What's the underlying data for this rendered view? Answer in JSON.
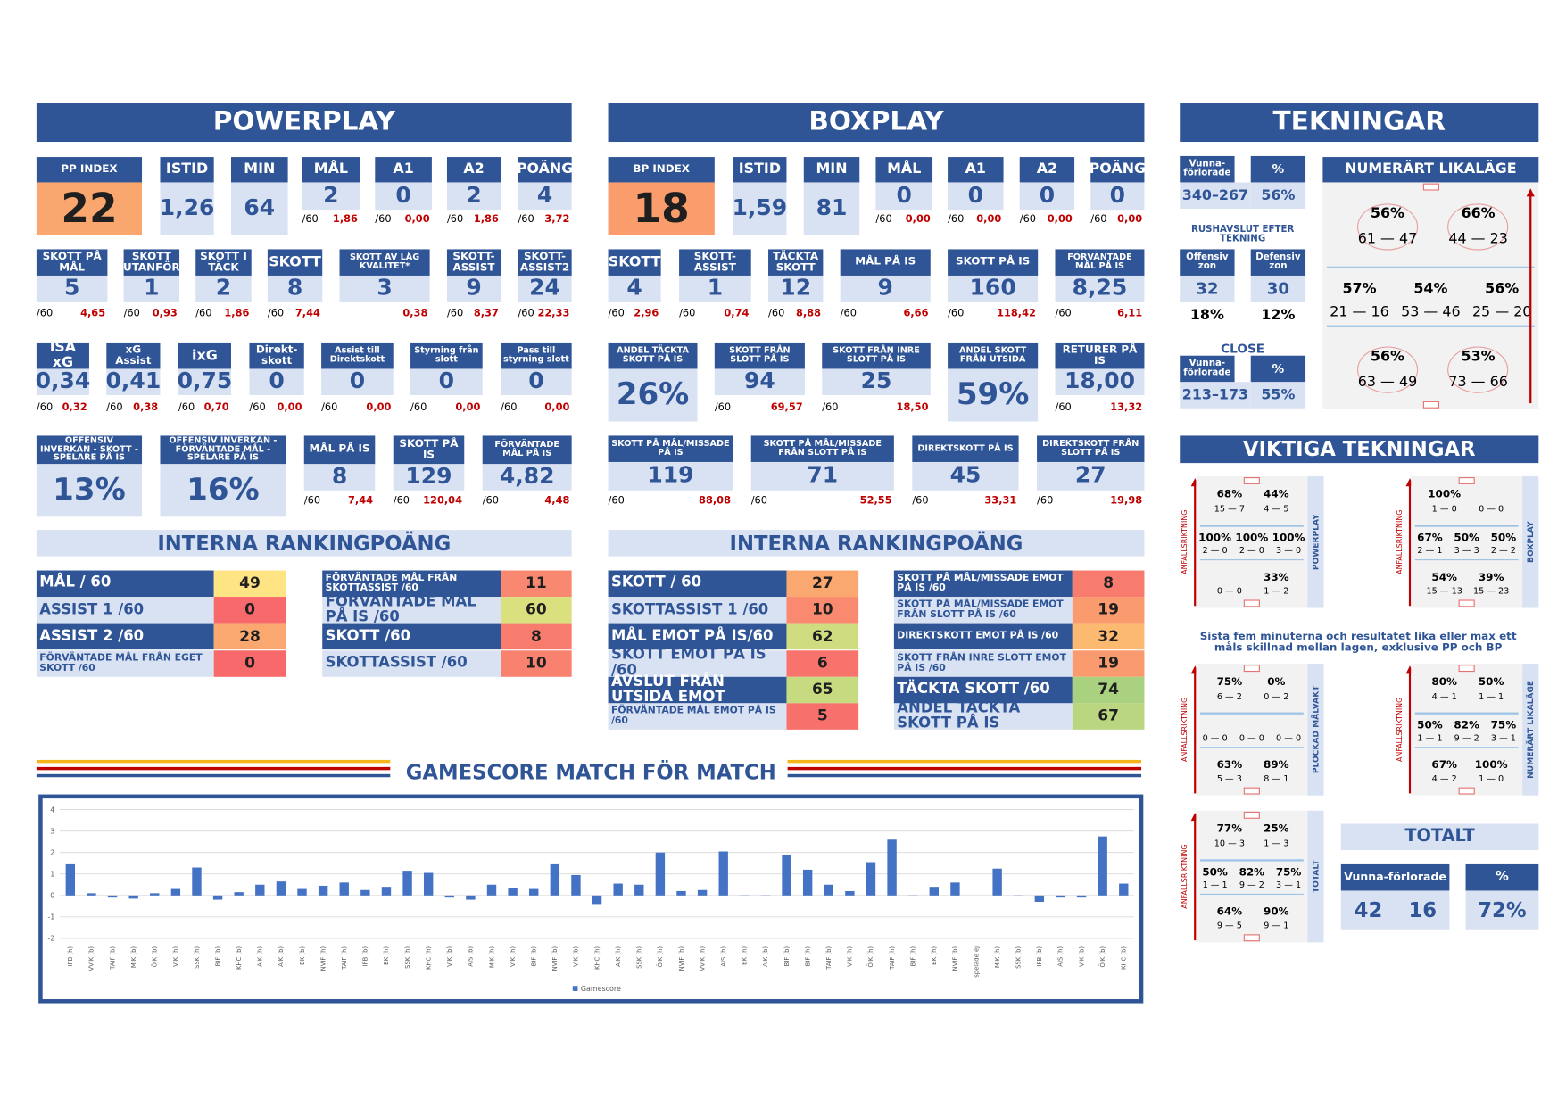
{
  "per_label": "/60",
  "powerplay": {
    "title": "POWERPLAY",
    "rows": [
      [
        {
          "label": "PP INDEX",
          "value": "22",
          "color": "#f9a66f"
        },
        {
          "label": "ISTID",
          "value": "1,26"
        },
        {
          "label": "MIN",
          "value": "64"
        },
        {
          "label": "MÅL",
          "value": "2",
          "per_label": "/60",
          "per": "1,86"
        },
        {
          "label": "A1",
          "value": "0",
          "per_label": "/60",
          "per": "0,00"
        },
        {
          "label": "A2",
          "value": "2",
          "per_label": "/60",
          "per": "1,86"
        },
        {
          "label": "POÄNG",
          "value": "4",
          "per_label": "/60",
          "per": "3,72"
        }
      ],
      [
        {
          "label": "SKOTT PÅ MÅL",
          "value": "5",
          "per_label": "/60",
          "per": "4,65"
        },
        {
          "label": "SKOTT UTANFÖR",
          "value": "1",
          "per_label": "/60",
          "per": "0,93"
        },
        {
          "label": "SKOTT I TÄCK",
          "value": "2",
          "per_label": "/60",
          "per": "1,86"
        },
        {
          "label": "SKOTT",
          "value": "8",
          "per_label": "/60",
          "per": "7,44"
        },
        {
          "label": "SKOTT AV LÅG KVALITET*",
          "value": "3",
          "per": "0,38"
        },
        {
          "label": "SKOTT-ASSIST",
          "value": "9",
          "per_label": "/60",
          "per": "8,37"
        },
        {
          "label": "SKOTT-ASSIST2",
          "value": "24",
          "per_label": "/60",
          "per": "22,33"
        }
      ],
      [
        {
          "label": "iSA xG",
          "value": "0,34",
          "per_label": "/60",
          "per": "0,32"
        },
        {
          "label": "xG Assist",
          "value": "0,41",
          "per_label": "/60",
          "per": "0,38"
        },
        {
          "label": "ixG",
          "value": "0,75",
          "per_label": "/60",
          "per": "0,70"
        },
        {
          "label": "Direkt-skott",
          "value": "0",
          "per_label": "/60",
          "per": "0,00"
        },
        {
          "label": "Assist till Direktskott",
          "value": "0",
          "per_label": "/60",
          "per": "0,00"
        },
        {
          "label": "Styrning från slott",
          "value": "0",
          "per_label": "/60",
          "per": "0,00"
        },
        {
          "label": "Pass till styrning slott",
          "value": "0",
          "per_label": "/60",
          "per": "0,00"
        }
      ],
      [
        {
          "label": "OFFENSIV INVERKAN - SKOTT - SPELARE PÅ IS",
          "value": "13%"
        },
        {
          "label": "OFFENSIV INVERKAN - FÖRVÄNTADE MÅL - SPELARE PÅ IS",
          "value": "16%"
        },
        {
          "label": "MÅL PÅ IS",
          "value": "8",
          "per_label": "/60",
          "per": "7,44"
        },
        {
          "label": "SKOTT PÅ IS",
          "value": "129",
          "per_label": "/60",
          "per": "120,04"
        },
        {
          "label": "FÖRVÄNTADE MÅL PÅ IS",
          "value": "4,82",
          "per_label": "/60",
          "per": "4,48"
        }
      ]
    ],
    "ranking": {
      "title": "INTERNA RANKINGPOÄNG",
      "left": [
        {
          "label": "MÅL / 60",
          "value": 49,
          "color": "#ffe483"
        },
        {
          "label": "ASSIST 1 /60",
          "value": 0,
          "color": "#f8696b"
        },
        {
          "label": "ASSIST 2 /60",
          "value": 28,
          "color": "#fba870"
        },
        {
          "label": "FÖRVÄNTADE MÅL FRÅN EGET SKOTT /60",
          "value": 0,
          "color": "#f8696b"
        }
      ],
      "right": [
        {
          "label": "FÖRVÄNTADE MÅL FRÅN SKOTTASSIST /60",
          "value": 11,
          "color": "#f98870"
        },
        {
          "label": "FÖRVÄNTADE MÅL PÅ IS /60",
          "value": 60,
          "color": "#dbe07f"
        },
        {
          "label": "SKOTT /60",
          "value": 8,
          "color": "#f87c6e"
        },
        {
          "label": "SKOTTASSIST /60",
          "value": 10,
          "color": "#f8816f"
        }
      ]
    }
  },
  "boxplay": {
    "title": "BOXPLAY",
    "rows": [
      [
        {
          "label": "BP INDEX",
          "value": "18",
          "color": "#fa9c6c"
        },
        {
          "label": "ISTID",
          "value": "1,59"
        },
        {
          "label": "MIN",
          "value": "81"
        },
        {
          "label": "MÅL",
          "value": "0",
          "per_label": "/60",
          "per": "0,00"
        },
        {
          "label": "A1",
          "value": "0",
          "per_label": "/60",
          "per": "0,00"
        },
        {
          "label": "A2",
          "value": "0",
          "per_label": "/60",
          "per": "0,00"
        },
        {
          "label": "POÄNG",
          "value": "0",
          "per_label": "/60",
          "per": "0,00"
        }
      ],
      [
        {
          "label": "SKOTT",
          "value": "4",
          "per_label": "/60",
          "per": "2,96"
        },
        {
          "label": "SKOTT-ASSIST",
          "value": "1",
          "per_label": "/60",
          "per": "0,74"
        },
        {
          "label": "TÄCKTA SKOTT",
          "value": "12",
          "per_label": "/60",
          "per": "8,88"
        },
        {
          "label": "MÅL PÅ IS",
          "value": "9",
          "per_label": "/60",
          "per": "6,66"
        },
        {
          "label": "SKOTT PÅ IS",
          "value": "160",
          "per_label": "/60",
          "per": "118,42"
        },
        {
          "label": "FÖRVÄNTADE MÅL PÅ IS",
          "value": "8,25",
          "per_label": "/60",
          "per": "6,11"
        }
      ],
      [
        {
          "label": "ANDEL TÄCKTA SKOTT PÅ IS",
          "value": "26%"
        },
        {
          "label": "SKOTT FRÅN SLOTT PÅ IS",
          "value": "94",
          "per_label": "/60",
          "per": "69,57"
        },
        {
          "label": "SKOTT FRÅN INRE SLOTT PÅ IS",
          "value": "25",
          "per_label": "/60",
          "per": "18,50"
        },
        {
          "label": "ANDEL SKOTT FRÅN UTSIDA",
          "value": "59%"
        },
        {
          "label": "RETURER PÅ IS",
          "value": "18,00",
          "per_label": "/60",
          "per": "13,32"
        }
      ],
      [
        {
          "label": "SKOTT PÅ MÅL/MISSADE PÅ IS",
          "value": "119",
          "per_label": "/60",
          "per": "88,08"
        },
        {
          "label": "SKOTT PÅ MÅL/MISSADE FRÅN SLOTT PÅ IS",
          "value": "71",
          "per_label": "/60",
          "per": "52,55"
        },
        {
          "label": "DIREKTSKOTT PÅ IS",
          "value": "45",
          "per_label": "/60",
          "per": "33,31"
        },
        {
          "label": "DIREKTSKOTT FRÅN SLOTT PÅ IS",
          "value": "27",
          "per_label": "/60",
          "per": "19,98"
        }
      ]
    ],
    "ranking": {
      "title": "INTERNA RANKINGPOÄNG",
      "left": [
        {
          "label": "SKOTT / 60",
          "value": 27,
          "color": "#fba870"
        },
        {
          "label": "SKOTTASSIST 1 /60",
          "value": 10,
          "color": "#f98a70"
        },
        {
          "label": "MÅL EMOT PÅ IS/60",
          "value": 62,
          "color": "#cfdd80"
        },
        {
          "label": "SKOTT EMOT PÅ IS /60",
          "value": 6,
          "color": "#f8736c"
        },
        {
          "label": "AVSLUT FRÅN UTSIDA EMOT",
          "value": 65,
          "color": "#c6db80"
        },
        {
          "label": "FÖRVÄNTADE MÅL EMOT PÅ IS /60",
          "value": 5,
          "color": "#f8706b"
        }
      ],
      "right": [
        {
          "label": "SKOTT PÅ MÅL/MISSADE EMOT PÅ IS /60",
          "value": 8,
          "color": "#f87c6e"
        },
        {
          "label": "SKOTT PÅ MÅL/MISSADE EMOT FRÅN SLOTT PÅ IS /60",
          "value": 19,
          "color": "#fa9a6f"
        },
        {
          "label": "DIREKTSKOTT EMOT PÅ IS /60",
          "value": 32,
          "color": "#fcb970"
        },
        {
          "label": "SKOTT FRÅN INRE SLOTT EMOT PÅ IS /60",
          "value": 19,
          "color": "#fa9a6f"
        },
        {
          "label": "TÄCKTA SKOTT /60",
          "value": 74,
          "color": "#a9d17f"
        },
        {
          "label": "ANDEL TÄCKTA SKOTT PÅ IS",
          "value": 67,
          "color": "#bbd680"
        }
      ]
    }
  },
  "tekningar": {
    "title": "TEKNINGAR",
    "overall": {
      "headers": [
        "Vunna-förlorade",
        "%"
      ],
      "values": [
        "340–267",
        "56%"
      ]
    },
    "rush": {
      "title": "RUSHAVSLUT EFTER TEKNING",
      "zones": [
        {
          "label": "Offensiv zon",
          "value": "32",
          "pct": "18%"
        },
        {
          "label": "Defensiv zon",
          "value": "30",
          "pct": "12%"
        }
      ]
    },
    "close": {
      "title": "CLOSE",
      "headers": [
        "Vunna-förlorade",
        "%"
      ],
      "values": [
        "213–173",
        "55%"
      ]
    },
    "even": {
      "title": "NUMERÄRT LIKALÄGE",
      "top": [
        {
          "pct": "56%",
          "score": "61 — 47"
        },
        {
          "pct": "66%",
          "score": "44 — 23"
        }
      ],
      "mid": [
        {
          "pct": "57%",
          "score": "21 — 16"
        },
        {
          "pct": "54%",
          "score": "53 — 46"
        },
        {
          "pct": "56%",
          "score": "25 — 20"
        }
      ],
      "bot": [
        {
          "pct": "56%",
          "score": "63 — 49"
        },
        {
          "pct": "53%",
          "score": "73 — 66"
        }
      ]
    }
  },
  "viktiga": {
    "title": "VIKTIGA TEKNINGAR",
    "direction_label": "ANFALLSRIKTNING",
    "note": "Sista fem minuterna och resultatet lika eller max ett måls skillnad mellan lagen, exklusive PP och BP",
    "panels": [
      {
        "name": "POWERPLAY",
        "top": [
          {
            "pct": "68%",
            "score": "15 — 7"
          },
          {
            "pct": "44%",
            "score": "4 — 5"
          }
        ],
        "mid": [
          {
            "pct": "100%",
            "score": "2 — 0"
          },
          {
            "pct": "100%",
            "score": "2 — 0"
          },
          {
            "pct": "100%",
            "score": "3 — 0"
          }
        ],
        "bot": [
          {
            "score": "0 — 0"
          },
          {
            "pct": "33%",
            "score": "1 — 2"
          }
        ]
      },
      {
        "name": "BOXPLAY",
        "top": [
          {
            "pct": "100%",
            "score": "1 — 0"
          },
          {
            "score": "0 — 0"
          }
        ],
        "mid": [
          {
            "pct": "67%",
            "score": "2 — 1"
          },
          {
            "pct": "50%",
            "score": "3 — 3"
          },
          {
            "pct": "50%",
            "score": "2 — 2"
          }
        ],
        "bot": [
          {
            "pct": "54%",
            "score": "15 — 13"
          },
          {
            "pct": "39%",
            "score": "15 — 23"
          }
        ]
      },
      {
        "name": "PLOCKAD MÅLVAKT",
        "top": [
          {
            "pct": "75%",
            "score": "6 — 2"
          },
          {
            "pct": "0%",
            "score": "0 — 2"
          }
        ],
        "mid": [
          {
            "score": "0 — 0"
          },
          {
            "score": "0 — 0"
          },
          {
            "score": "0 — 0"
          }
        ],
        "bot": [
          {
            "pct": "63%",
            "score": "5 — 3"
          },
          {
            "pct": "89%",
            "score": "8 — 1"
          }
        ]
      },
      {
        "name": "NUMERÄRT LIKALÄGE",
        "top": [
          {
            "pct": "80%",
            "score": "4 — 1"
          },
          {
            "pct": "50%",
            "score": "1 — 1"
          }
        ],
        "mid": [
          {
            "pct": "50%",
            "score": "1 — 1"
          },
          {
            "pct": "82%",
            "score": "9 — 2"
          },
          {
            "pct": "75%",
            "score": "3 — 1"
          }
        ],
        "bot": [
          {
            "pct": "67%",
            "score": "4 — 2"
          },
          {
            "pct": "100%",
            "score": "1 — 0"
          }
        ]
      },
      {
        "name": "TOTALT",
        "top": [
          {
            "pct": "77%",
            "score": "10 — 3"
          },
          {
            "pct": "25%",
            "score": "1 — 3"
          }
        ],
        "mid": [
          {
            "pct": "50%",
            "score": "1 — 1"
          },
          {
            "pct": "82%",
            "score": "9 — 2"
          },
          {
            "pct": "75%",
            "score": "3 — 1"
          }
        ],
        "bot": [
          {
            "pct": "64%",
            "score": "9 — 5"
          },
          {
            "pct": "90%",
            "score": "9 — 1"
          }
        ]
      }
    ],
    "total": {
      "title": "TOTALT",
      "headers": [
        "Vunna-förlorade",
        "%"
      ],
      "won": "42",
      "lost": "16",
      "pct": "72%"
    }
  },
  "chart_data": {
    "type": "bar",
    "title": "GAMESCORE MATCH FÖR MATCH",
    "categories": [
      "IFB (h)",
      "VVIK (b)",
      "TAIF (b)",
      "MIK (b)",
      "ÖIK (b)",
      "VIK (h)",
      "SSK (h)",
      "BIF (b)",
      "KHC (b)",
      "AIK (h)",
      "AIK (b)",
      "BK (b)",
      "NVIF (h)",
      "TAIF (h)",
      "IFB (b)",
      "BK (h)",
      "SSK (h)",
      "KHC (h)",
      "VIK (b)",
      "AIS (b)",
      "MIK (h)",
      "VIK (h)",
      "BIF (b)",
      "NVIF (b)",
      "VIK (b)",
      "KHC (h)",
      "AIK (h)",
      "SSK (h)",
      "ÖIK (h)",
      "NVIF (h)",
      "VVIK (h)",
      "AIS (h)",
      "BK (h)",
      "AIK (b)",
      "BIF (b)",
      "BIF (h)",
      "TAIF (b)",
      "VIK (h)",
      "ÖIK (h)",
      "TAIF (h)",
      "BIF (h)",
      "BK (h)",
      "NVIF (b)",
      "spelade ej",
      "MIK (h)",
      "SSK (b)",
      "IFB (b)",
      "AIS (h)",
      "VIK (b)",
      "ÖIK (b)",
      "KHC (b)"
    ],
    "series": [
      {
        "name": "Gamescore",
        "color": "#4472c4",
        "values": [
          1.45,
          0.1,
          -0.1,
          -0.15,
          0.1,
          0.3,
          1.3,
          -0.2,
          0.15,
          0.5,
          0.65,
          0.3,
          0.45,
          0.6,
          0.25,
          0.4,
          1.15,
          1.05,
          -0.1,
          -0.2,
          0.5,
          0.35,
          0.3,
          1.45,
          0.95,
          -0.4,
          0.55,
          0.5,
          2.0,
          0.2,
          0.25,
          2.05,
          -0.05,
          -0.05,
          1.9,
          1.2,
          0.5,
          0.2,
          1.55,
          2.6,
          -0.05,
          0.4,
          0.6,
          null,
          1.25,
          -0.05,
          -0.3,
          -0.1,
          -0.1,
          2.75,
          0.55
        ]
      }
    ],
    "ylim": [
      -2,
      4
    ],
    "yticks": [
      -2,
      -1,
      0,
      1,
      2,
      3,
      4
    ],
    "grid": true
  }
}
